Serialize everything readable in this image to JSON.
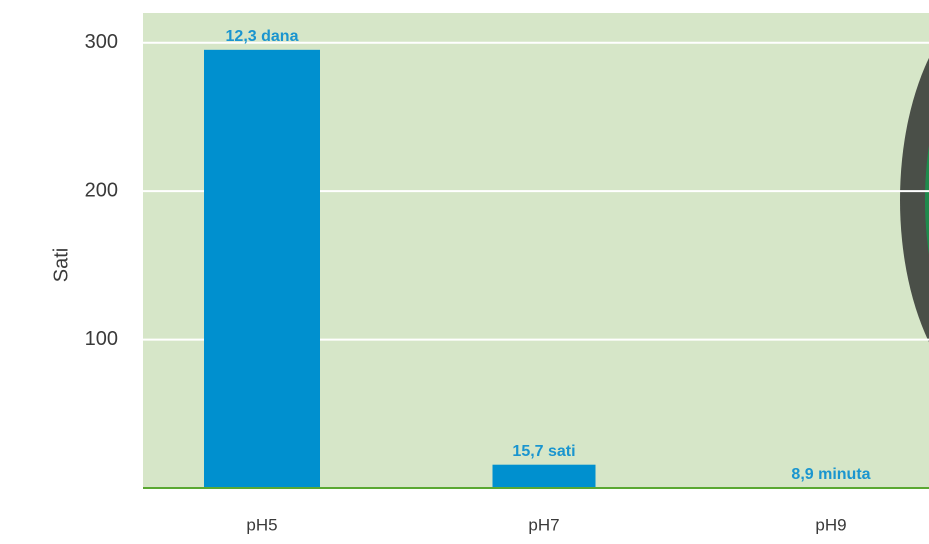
{
  "chart_data": {
    "type": "bar",
    "y_label": "Sati",
    "categories": [
      "pH5",
      "pH7",
      "pH9"
    ],
    "values": [
      295.2,
      15.7,
      0.148
    ],
    "value_labels": [
      "12,3 dana",
      "15,7 sati",
      "8,9 minuta"
    ],
    "color": "#0090cf",
    "ylim": [
      0,
      320
    ],
    "yticks": [
      100,
      200,
      300
    ],
    "grid": true
  }
}
